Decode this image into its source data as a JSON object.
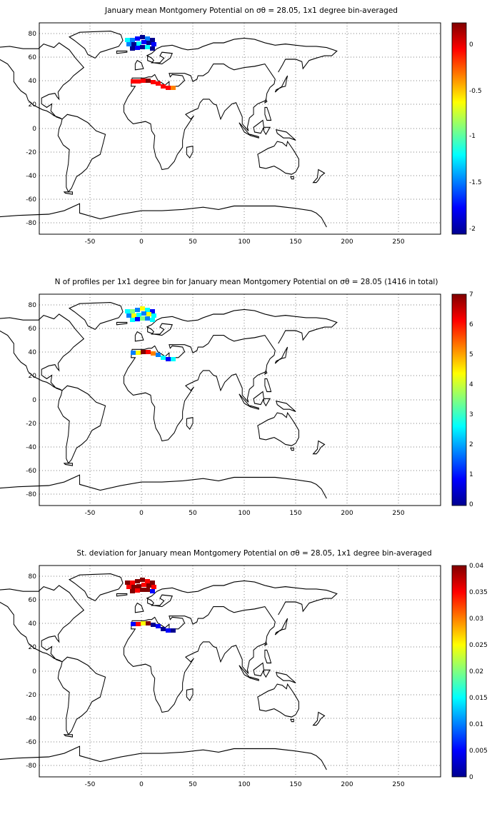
{
  "figure": {
    "panels": [
      {
        "title": "January mean Montgomery Potential on σθ = 28.05, 1x1 degree bin-averaged",
        "xticks": [
          "-50",
          "0",
          "50",
          "100",
          "150",
          "200",
          "250"
        ],
        "yticks": [
          "80",
          "60",
          "40",
          "20",
          "0",
          "-20",
          "-40",
          "-60",
          "-80"
        ],
        "colorbar_ticks": [
          "0",
          "-0.5",
          "-1",
          "-1.5",
          "-2"
        ]
      },
      {
        "title": "N of profiles per 1x1 degree bin for January mean Montgomery Potential on σθ = 28.05 (1416 in total)",
        "xticks": [
          "-50",
          "0",
          "50",
          "100",
          "150",
          "200",
          "250"
        ],
        "yticks": [
          "80",
          "60",
          "40",
          "20",
          "0",
          "-20",
          "-40",
          "-60",
          "-80"
        ],
        "colorbar_ticks": [
          "7",
          "6",
          "5",
          "4",
          "3",
          "2",
          "1",
          "0"
        ]
      },
      {
        "title": "St. deviation for January mean Montgomery Potential on σθ = 28.05, 1x1 degree bin-averaged",
        "xticks": [
          "-50",
          "0",
          "50",
          "100",
          "150",
          "200",
          "250"
        ],
        "yticks": [
          "80",
          "60",
          "40",
          "20",
          "0",
          "-20",
          "-40",
          "-60",
          "-80"
        ],
        "colorbar_ticks": [
          "0.04",
          "0.035",
          "0.03",
          "0.025",
          "0.02",
          "0.015",
          "0.01",
          "0.005",
          "0"
        ]
      }
    ]
  },
  "chart_data": [
    {
      "type": "heatmap",
      "title": "January mean Montgomery Potential on σθ = 28.05, 1x1 degree bin-averaged",
      "xlim": [
        -95,
        295
      ],
      "ylim": [
        -90,
        90
      ],
      "grid": true,
      "colorbar": {
        "range": [
          -2.1,
          0.25
        ],
        "ticks": [
          0,
          -0.5,
          -1,
          -1.5,
          -2
        ],
        "colormap": "jet"
      },
      "regions": [
        {
          "lon": [
            -15,
            15
          ],
          "lat": [
            63,
            78
          ],
          "value_range": [
            -2.0,
            -1.0
          ]
        },
        {
          "lon": [
            -10,
            35
          ],
          "lat": [
            30,
            45
          ],
          "value_range": [
            0.0,
            0.25
          ]
        }
      ]
    },
    {
      "type": "heatmap",
      "title": "N of profiles per 1x1 degree bin for January mean Montgomery Potential on σθ = 28.05 (1416 in total)",
      "xlim": [
        -95,
        295
      ],
      "ylim": [
        -90,
        90
      ],
      "grid": true,
      "colorbar": {
        "range": [
          0,
          7
        ],
        "ticks": [
          0,
          1,
          2,
          3,
          4,
          5,
          6,
          7
        ],
        "colormap": "jet"
      },
      "regions": [
        {
          "lon": [
            -15,
            15
          ],
          "lat": [
            63,
            78
          ],
          "value_range": [
            1,
            4
          ]
        },
        {
          "lon": [
            -10,
            35
          ],
          "lat": [
            30,
            45
          ],
          "value_range": [
            1,
            7
          ]
        }
      ]
    },
    {
      "type": "heatmap",
      "title": "St. deviation for January mean Montgomery Potential on σθ = 28.05, 1x1 degree bin-averaged",
      "xlim": [
        -95,
        295
      ],
      "ylim": [
        -90,
        90
      ],
      "grid": true,
      "colorbar": {
        "range": [
          0,
          0.04
        ],
        "ticks": [
          0,
          0.005,
          0.01,
          0.015,
          0.02,
          0.025,
          0.03,
          0.035,
          0.04
        ],
        "colormap": "jet"
      },
      "regions": [
        {
          "lon": [
            -15,
            15
          ],
          "lat": [
            63,
            78
          ],
          "value_range": [
            0.03,
            0.04
          ]
        },
        {
          "lon": [
            -10,
            35
          ],
          "lat": [
            30,
            45
          ],
          "value_range": [
            0.0,
            0.04
          ]
        }
      ]
    }
  ],
  "colors": {
    "jet": [
      "#00008f",
      "#0000ff",
      "#0080ff",
      "#00ffff",
      "#80ff80",
      "#ffff00",
      "#ff8000",
      "#ff0000",
      "#800000"
    ],
    "coastline": "#000000",
    "grid": "#000000"
  }
}
